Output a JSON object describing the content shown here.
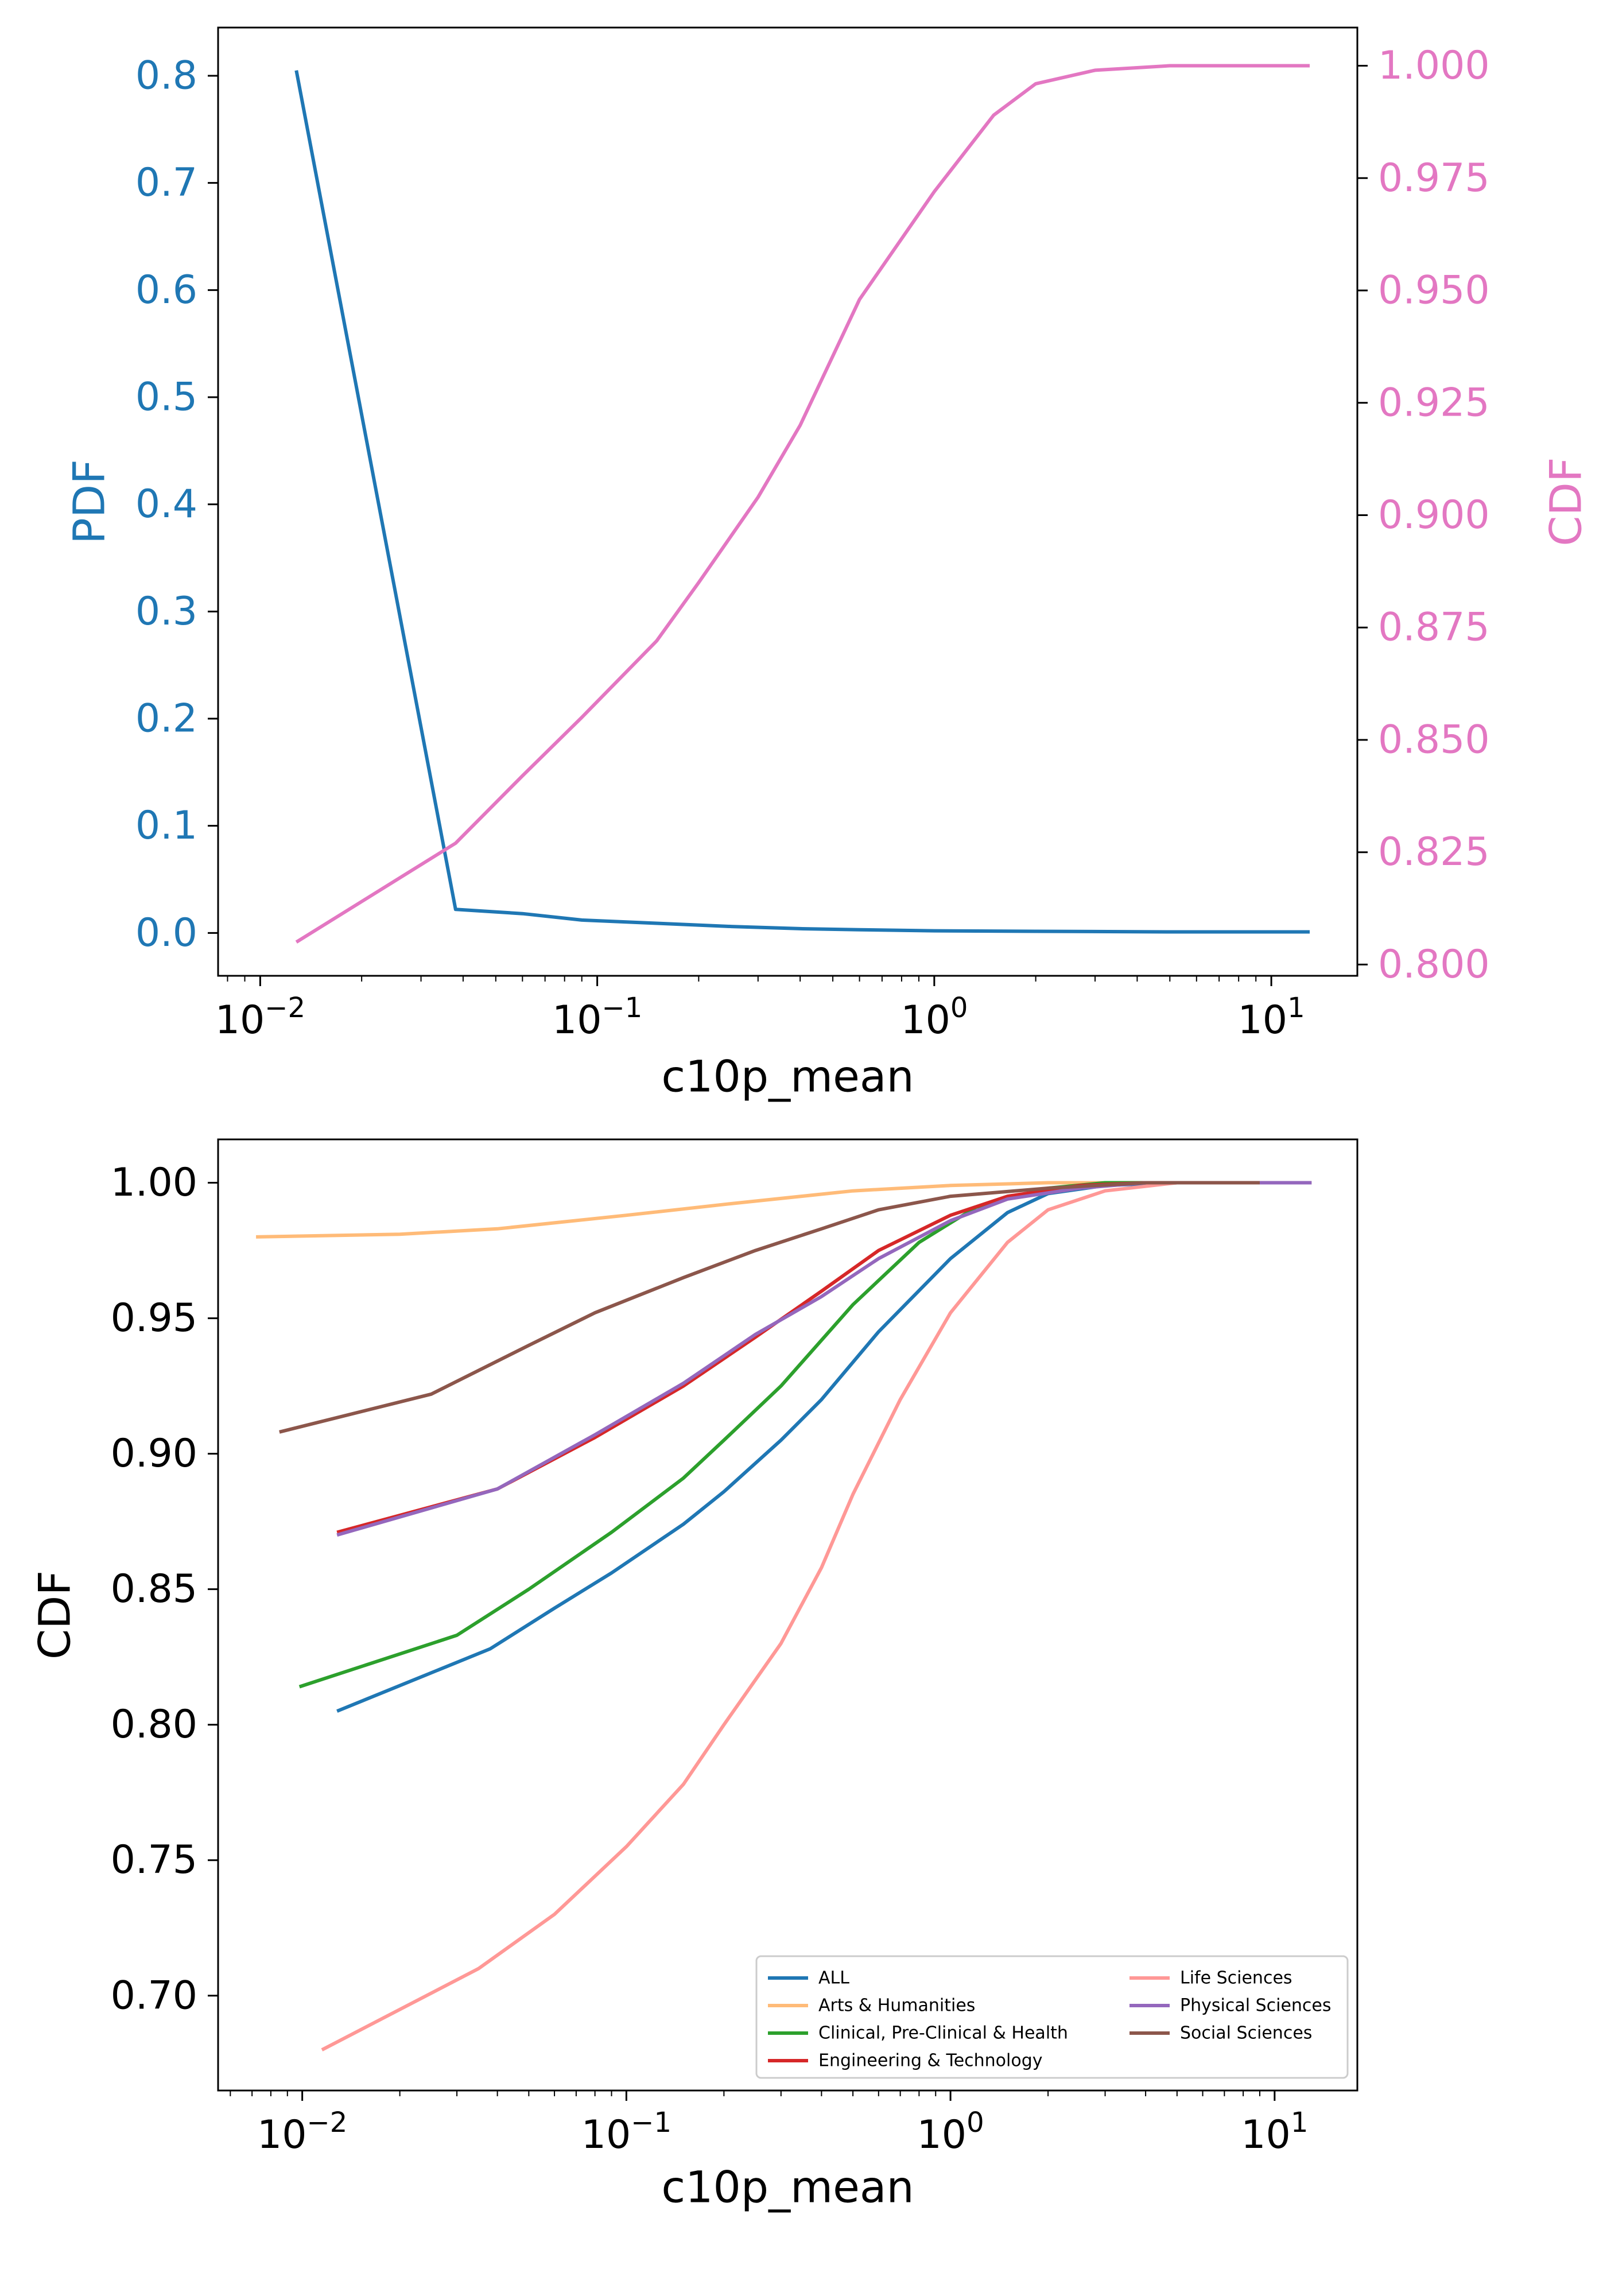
{
  "chart_data": [
    {
      "type": "line",
      "xlabel": "c10p_mean",
      "xscale": "log",
      "xlim": [
        0.0075,
        18
      ],
      "x_ticks": [
        {
          "value": 0.01,
          "base": "10",
          "exp": "−2"
        },
        {
          "value": 0.1,
          "base": "10",
          "exp": "−1"
        },
        {
          "value": 1,
          "base": "10",
          "exp": "0"
        },
        {
          "value": 10,
          "base": "10",
          "exp": "1"
        }
      ],
      "ylabel_left": "PDF",
      "ylabel_right": "CDF",
      "ylim_left": [
        -0.04,
        0.845
      ],
      "ylim_right": [
        0.7975,
        1.0085
      ],
      "yticks_left": [
        "0.0",
        "0.1",
        "0.2",
        "0.3",
        "0.4",
        "0.5",
        "0.6",
        "0.7",
        "0.8"
      ],
      "yticks_right": [
        "0.800",
        "0.825",
        "0.850",
        "0.875",
        "0.900",
        "0.925",
        "0.950",
        "0.975",
        "1.000"
      ],
      "left_color": "#1f77b4",
      "right_color": "#e377c2",
      "series": [
        {
          "axis": "left",
          "color": "#1f77b4",
          "points": [
            [
              0.0128,
              0.805
            ],
            [
              0.038,
              0.022
            ],
            [
              0.06,
              0.018
            ],
            [
              0.09,
              0.012
            ],
            [
              0.15,
              0.009
            ],
            [
              0.25,
              0.006
            ],
            [
              0.4,
              0.004
            ],
            [
              0.6,
              0.003
            ],
            [
              1.0,
              0.002
            ],
            [
              2.0,
              0.0015
            ],
            [
              5.0,
              0.001
            ],
            [
              13,
              0.001
            ]
          ]
        },
        {
          "axis": "right",
          "color": "#e377c2",
          "points": [
            [
              0.0128,
              0.805
            ],
            [
              0.038,
              0.827
            ],
            [
              0.06,
              0.842
            ],
            [
              0.09,
              0.855
            ],
            [
              0.15,
              0.872
            ],
            [
              0.2,
              0.885
            ],
            [
              0.3,
              0.904
            ],
            [
              0.4,
              0.92
            ],
            [
              0.6,
              0.948
            ],
            [
              1.0,
              0.972
            ],
            [
              1.5,
              0.989
            ],
            [
              2.0,
              0.996
            ],
            [
              3.0,
              0.999
            ],
            [
              5.0,
              1.0
            ],
            [
              13,
              1.0
            ]
          ]
        }
      ]
    },
    {
      "type": "line",
      "xlabel": "c10p_mean",
      "xscale": "log",
      "xlim": [
        0.0055,
        18
      ],
      "x_ticks": [
        {
          "value": 0.01,
          "base": "10",
          "exp": "−2"
        },
        {
          "value": 0.1,
          "base": "10",
          "exp": "−1"
        },
        {
          "value": 1,
          "base": "10",
          "exp": "0"
        },
        {
          "value": 10,
          "base": "10",
          "exp": "1"
        }
      ],
      "ylabel": "CDF",
      "ylim": [
        0.665,
        1.016
      ],
      "yticks": [
        "0.70",
        "0.75",
        "0.80",
        "0.85",
        "0.90",
        "0.95",
        "1.00"
      ],
      "legend_position": "lower-right",
      "legend_columns": 2,
      "series": [
        {
          "name": "ALL",
          "color": "#1f77b4",
          "points": [
            [
              0.0128,
              0.805
            ],
            [
              0.038,
              0.828
            ],
            [
              0.06,
              0.843
            ],
            [
              0.09,
              0.856
            ],
            [
              0.15,
              0.874
            ],
            [
              0.2,
              0.886
            ],
            [
              0.3,
              0.905
            ],
            [
              0.4,
              0.92
            ],
            [
              0.6,
              0.945
            ],
            [
              1.0,
              0.972
            ],
            [
              1.5,
              0.989
            ],
            [
              2.0,
              0.996
            ],
            [
              3.0,
              0.999
            ],
            [
              5.0,
              1.0
            ],
            [
              13,
              1.0
            ]
          ]
        },
        {
          "name": "Arts & Humanities",
          "color": "#ffbb78",
          "points": [
            [
              0.0072,
              0.98
            ],
            [
              0.02,
              0.981
            ],
            [
              0.04,
              0.983
            ],
            [
              0.1,
              0.988
            ],
            [
              0.2,
              0.992
            ],
            [
              0.5,
              0.997
            ],
            [
              1.0,
              0.999
            ],
            [
              2.0,
              1.0
            ],
            [
              5.0,
              1.0
            ]
          ]
        },
        {
          "name": "Clinical, Pre-Clinical & Health",
          "color": "#2ca02c",
          "points": [
            [
              0.0098,
              0.814
            ],
            [
              0.03,
              0.833
            ],
            [
              0.05,
              0.85
            ],
            [
              0.09,
              0.871
            ],
            [
              0.15,
              0.891
            ],
            [
              0.2,
              0.905
            ],
            [
              0.3,
              0.925
            ],
            [
              0.5,
              0.955
            ],
            [
              0.8,
              0.978
            ],
            [
              1.2,
              0.991
            ],
            [
              2.0,
              0.998
            ],
            [
              3.0,
              1.0
            ],
            [
              5.0,
              1.0
            ]
          ]
        },
        {
          "name": "Engineering & Technology",
          "color": "#d62728",
          "points": [
            [
              0.0128,
              0.871
            ],
            [
              0.04,
              0.887
            ],
            [
              0.08,
              0.906
            ],
            [
              0.15,
              0.925
            ],
            [
              0.25,
              0.943
            ],
            [
              0.4,
              0.96
            ],
            [
              0.6,
              0.975
            ],
            [
              1.0,
              0.988
            ],
            [
              1.5,
              0.995
            ],
            [
              2.5,
              0.999
            ],
            [
              4.0,
              1.0
            ],
            [
              5.0,
              1.0
            ]
          ]
        },
        {
          "name": "Life Sciences",
          "color": "#ff9896",
          "points": [
            [
              0.0115,
              0.68
            ],
            [
              0.035,
              0.71
            ],
            [
              0.06,
              0.73
            ],
            [
              0.1,
              0.755
            ],
            [
              0.15,
              0.778
            ],
            [
              0.2,
              0.8
            ],
            [
              0.3,
              0.83
            ],
            [
              0.4,
              0.858
            ],
            [
              0.5,
              0.885
            ],
            [
              0.7,
              0.92
            ],
            [
              1.0,
              0.952
            ],
            [
              1.5,
              0.978
            ],
            [
              2.0,
              0.99
            ],
            [
              3.0,
              0.997
            ],
            [
              5.0,
              1.0
            ],
            [
              13,
              1.0
            ]
          ]
        },
        {
          "name": "Physical Sciences",
          "color": "#9467bd",
          "points": [
            [
              0.0128,
              0.87
            ],
            [
              0.04,
              0.887
            ],
            [
              0.08,
              0.907
            ],
            [
              0.15,
              0.926
            ],
            [
              0.25,
              0.944
            ],
            [
              0.4,
              0.958
            ],
            [
              0.6,
              0.972
            ],
            [
              1.0,
              0.986
            ],
            [
              1.5,
              0.994
            ],
            [
              2.5,
              0.998
            ],
            [
              4.0,
              1.0
            ],
            [
              13,
              1.0
            ]
          ]
        },
        {
          "name": "Social Sciences",
          "color": "#8c564b",
          "points": [
            [
              0.0085,
              0.908
            ],
            [
              0.025,
              0.922
            ],
            [
              0.05,
              0.94
            ],
            [
              0.08,
              0.952
            ],
            [
              0.15,
              0.965
            ],
            [
              0.25,
              0.975
            ],
            [
              0.4,
              0.983
            ],
            [
              0.6,
              0.99
            ],
            [
              1.0,
              0.995
            ],
            [
              2.0,
              0.998
            ],
            [
              4.0,
              1.0
            ],
            [
              9.0,
              1.0
            ]
          ]
        }
      ]
    }
  ]
}
